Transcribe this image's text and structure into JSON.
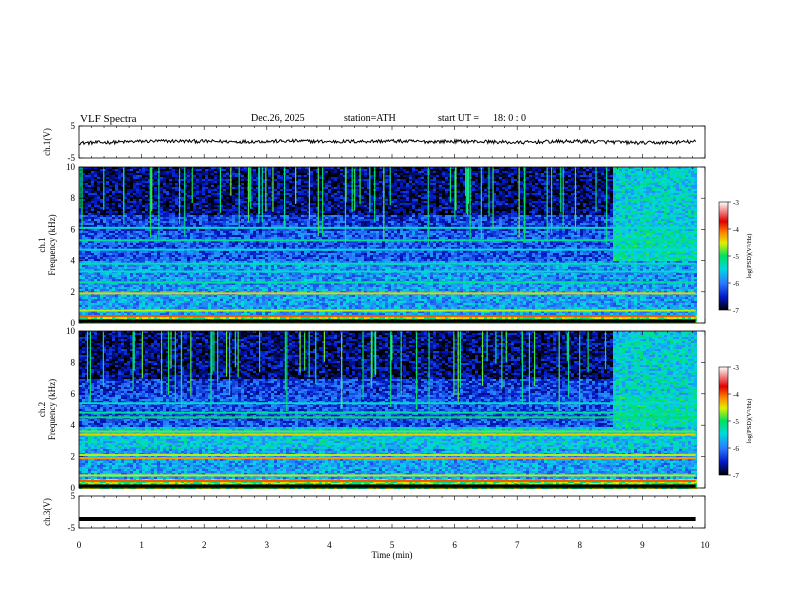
{
  "header": {
    "title": "VLF  Spectra",
    "date": "Dec.26, 2025",
    "station": "station=ATH",
    "start_label": "start  UT  =",
    "start_time": "18: 0  : 0"
  },
  "chart_data": [
    {
      "type": "line",
      "name": "ch1-waveform",
      "ylabel": "ch.1(V)",
      "ylim": [
        -5,
        5
      ],
      "yticks": [
        "5",
        "-5"
      ],
      "xlim": [
        0,
        10
      ],
      "x": [
        0,
        0.5,
        1,
        1.5,
        2,
        2.5,
        3,
        3.5,
        4,
        4.5,
        5,
        5.5,
        6,
        6.5,
        7,
        7.5,
        8,
        8.5,
        9,
        9.5,
        9.85
      ],
      "values": [
        -0.3,
        -0.1,
        0.2,
        0.3,
        0.2,
        0.1,
        0.2,
        0.3,
        0.1,
        0.2,
        0.3,
        0.1,
        0.2,
        0.1,
        -0.2,
        0.1,
        0.2,
        0.0,
        -0.3,
        -0.1,
        0.1
      ]
    },
    {
      "type": "heatmap",
      "name": "ch1-spectrogram",
      "ylabel": "ch.1\nFrequency (kHz)",
      "ylim": [
        0,
        10
      ],
      "yticks": [
        "0",
        "2",
        "4",
        "6",
        "8",
        "10"
      ],
      "xlim": [
        0,
        10
      ],
      "data_end_min": 9.85,
      "colorbar": {
        "label": "log(PSD)(V²/Hz)",
        "range": [
          -7,
          -3
        ],
        "ticks": [
          "-3",
          "-4",
          "-5",
          "-6",
          "-7"
        ]
      }
    },
    {
      "type": "heatmap",
      "name": "ch2-spectrogram",
      "ylabel": "ch.2\nFrequency (kHz)",
      "ylim": [
        0,
        10
      ],
      "yticks": [
        "0",
        "2",
        "4",
        "6",
        "8",
        "10"
      ],
      "xlim": [
        0,
        10
      ],
      "data_end_min": 9.85,
      "colorbar": {
        "label": "log(PSD)(V²/Hz)",
        "range": [
          -7,
          -3
        ],
        "ticks": [
          "-3",
          "-4",
          "-5",
          "-6",
          "-7"
        ]
      }
    },
    {
      "type": "line",
      "name": "ch3-waveform",
      "ylabel": "ch.3(V)",
      "ylim": [
        -5,
        5
      ],
      "yticks": [
        "5",
        "-5"
      ],
      "xlim": [
        0,
        10
      ],
      "x": [
        0,
        9.85
      ],
      "values": [
        -2.2,
        -2.2
      ]
    }
  ],
  "xaxis": {
    "label": "Time  (min)",
    "ticks": [
      "0",
      "1",
      "2",
      "3",
      "4",
      "5",
      "6",
      "7",
      "8",
      "9",
      "10"
    ]
  },
  "colors": {
    "colormap": [
      "#000000",
      "#0018c8",
      "#2a7aff",
      "#00d8e0",
      "#00e060",
      "#e0f000",
      "#ff8000",
      "#e00000",
      "#ffffff"
    ]
  }
}
